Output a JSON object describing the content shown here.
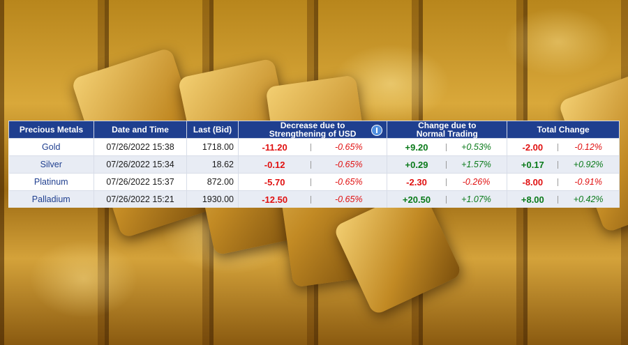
{
  "table": {
    "headers": [
      "Precious Metals",
      "Date and Time",
      "Last (Bid)",
      "Decrease due to\nStrengthening of USD",
      "Change due to\nNormal Trading",
      "Total Change"
    ],
    "rows": [
      [
        "Gold",
        "07/26/2022 15:38",
        "1718.00",
        "-11.20",
        "-0.65%",
        "+9.20",
        "+0.53%",
        "-2.00",
        "-0.12%"
      ],
      [
        "Silver",
        "07/26/2022 15:34",
        "18.62",
        "-0.12",
        "-0.65%",
        "+0.29",
        "+1.57%",
        "+0.17",
        "+0.92%"
      ],
      [
        "Platinum",
        "07/26/2022 15:37",
        "872.00",
        "-5.70",
        "-0.65%",
        "-2.30",
        "-0.26%",
        "-8.00",
        "-0.91%"
      ],
      [
        "Palladium",
        "07/26/2022 15:21",
        "1930.00",
        "-12.50",
        "-0.65%",
        "+20.50",
        "+1.07%",
        "+8.00",
        "+0.42%"
      ]
    ]
  }
}
